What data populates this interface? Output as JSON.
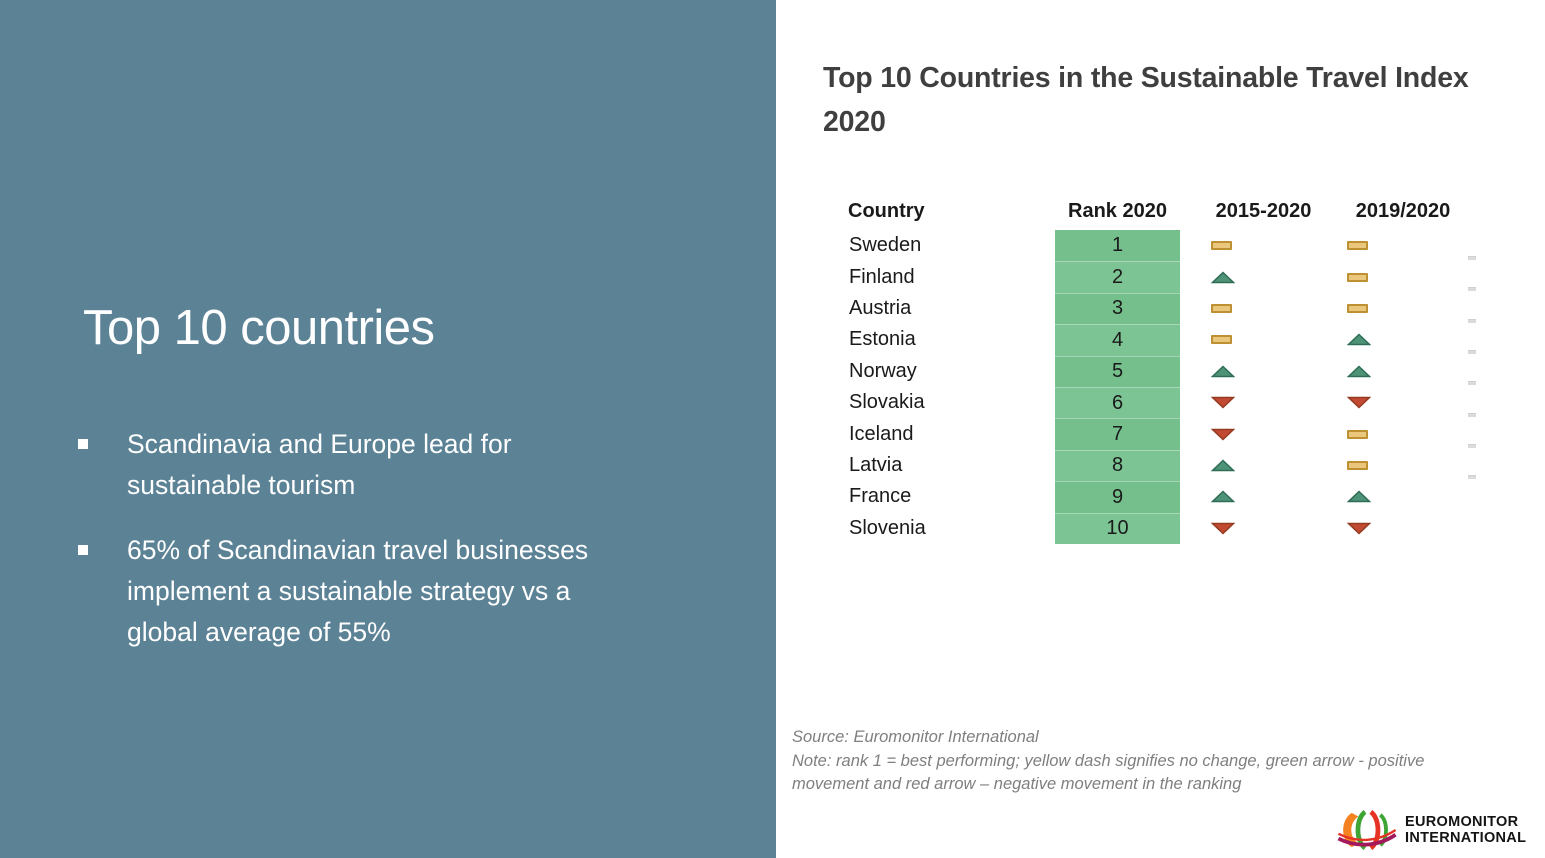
{
  "left_panel": {
    "heading": "Top 10 countries",
    "bullets": [
      {
        "text": "Scandinavia and Europe lead for\nsustainable tourism"
      },
      {
        "text": "65% of Scandinavian travel businesses\nimplement a sustainable strategy vs a\nglobal average of 55%"
      }
    ]
  },
  "right_panel": {
    "title": "Top 10 Countries in the Sustainable Travel Index\n2020",
    "source_note": "Source: Euromonitor International\nNote: rank 1 = best performing; yellow dash signifies no change, green arrow - positive\nmovement and red arrow – negative movement in the ranking",
    "edge_marks_count": 8,
    "logo": {
      "text": "EUROMONITOR\nINTERNATIONAL"
    }
  },
  "chart_data": {
    "type": "table",
    "title": "Top 10 Countries in the Sustainable Travel Index 2020",
    "headers": [
      "Country",
      "Rank 2020",
      "2015-2020",
      "2019/2020"
    ],
    "legend": {
      "no_change": "yellow dash signifies no change",
      "up": "green arrow - positive movement",
      "down": "red arrow - negative movement"
    },
    "rows": [
      {
        "country": "Sweden",
        "rank": 1,
        "trend_2015_2020": "no-change",
        "trend_2019_2020": "no-change"
      },
      {
        "country": "Finland",
        "rank": 2,
        "trend_2015_2020": "up",
        "trend_2019_2020": "no-change"
      },
      {
        "country": "Austria",
        "rank": 3,
        "trend_2015_2020": "no-change",
        "trend_2019_2020": "no-change"
      },
      {
        "country": "Estonia",
        "rank": 4,
        "trend_2015_2020": "no-change",
        "trend_2019_2020": "up"
      },
      {
        "country": "Norway",
        "rank": 5,
        "trend_2015_2020": "up",
        "trend_2019_2020": "up"
      },
      {
        "country": "Slovakia",
        "rank": 6,
        "trend_2015_2020": "down",
        "trend_2019_2020": "down"
      },
      {
        "country": "Iceland",
        "rank": 7,
        "trend_2015_2020": "down",
        "trend_2019_2020": "no-change"
      },
      {
        "country": "Latvia",
        "rank": 8,
        "trend_2015_2020": "up",
        "trend_2019_2020": "no-change"
      },
      {
        "country": "France",
        "rank": 9,
        "trend_2015_2020": "up",
        "trend_2019_2020": "up"
      },
      {
        "country": "Slovenia",
        "rank": 10,
        "trend_2015_2020": "down",
        "trend_2019_2020": "down"
      }
    ]
  },
  "colors": {
    "panel_bg": "#5C8296",
    "title_color": "#3F3F3F",
    "source_color": "#7F7F7F",
    "rank_fill": "#74BF8C",
    "rank_fill_alt": "#7CC494",
    "dash_fill": "#EBC77D",
    "dash_border": "#BD9032",
    "up_fill": "#4E9377",
    "up_border": "#2F6D55",
    "down_fill": "#C34A32",
    "down_border": "#943B22"
  },
  "logo_colors": {
    "orange": "#F58220",
    "green": "#3FA535",
    "red": "#E63323",
    "magenta": "#A3195B"
  }
}
